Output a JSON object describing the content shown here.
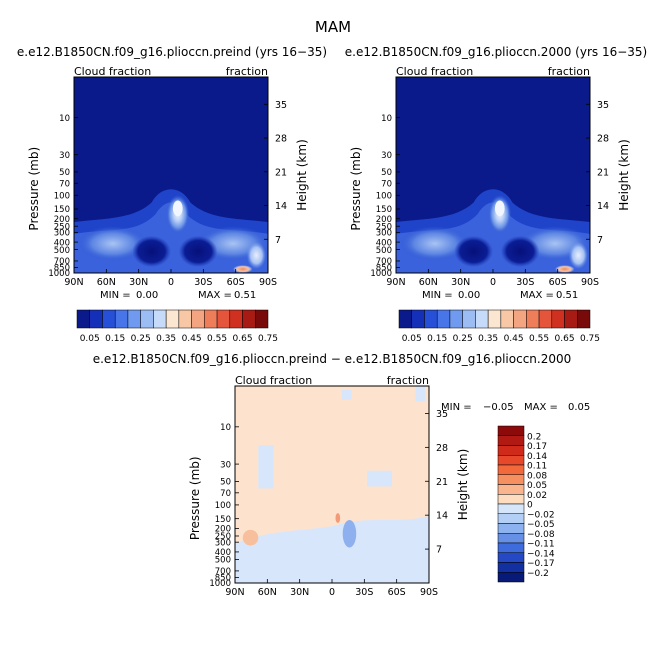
{
  "figure": {
    "season": "MAM"
  },
  "chart_data": [
    {
      "type": "heatmap",
      "panel": "left",
      "title": "e.e12.B1850CN.f09_g16.plioccn.preind (yrs 16−35)",
      "variable_label": "Cloud fraction",
      "units_label": "fraction",
      "xlabel": "",
      "ylabel": "Pressure (mb)",
      "y2label": "Height (km)",
      "x_ticks": [
        "90N",
        "60N",
        "30N",
        "0",
        "30S",
        "60S",
        "90S"
      ],
      "y_ticks": [
        "10",
        "30",
        "50",
        "70",
        "100",
        "150",
        "200",
        "250",
        "300",
        "400",
        "500",
        "700",
        "850",
        "1000"
      ],
      "y2_ticks": [
        "35",
        "28",
        "21",
        "14",
        "7"
      ],
      "min_text": "MIN =",
      "min_value": "0.00",
      "max_text": "MAX =",
      "max_value": "0.51",
      "colorbar": {
        "orientation": "horizontal",
        "levels": [
          "0.05",
          "0.15",
          "0.25",
          "0.35",
          "0.45",
          "0.55",
          "0.65",
          "0.75"
        ],
        "colors": [
          "#0a1a8a",
          "#1530b8",
          "#2650d8",
          "#4876e8",
          "#6f9aef",
          "#9cbdf4",
          "#c6dbfa",
          "#fbe6d2",
          "#f8c7a6",
          "#f3a480",
          "#ee7d5a",
          "#e4553c",
          "#cf3020",
          "#a81a14",
          "#780a0a"
        ]
      }
    },
    {
      "type": "heatmap",
      "panel": "right",
      "title": "e.e12.B1850CN.f09_g16.plioccn.2000 (yrs 16−35)",
      "variable_label": "Cloud fraction",
      "units_label": "fraction",
      "xlabel": "",
      "ylabel": "Pressure (mb)",
      "y2label": "Height (km)",
      "x_ticks": [
        "90N",
        "60N",
        "30N",
        "0",
        "30S",
        "60S",
        "90S"
      ],
      "y_ticks": [
        "10",
        "30",
        "50",
        "70",
        "100",
        "150",
        "200",
        "250",
        "300",
        "400",
        "500",
        "700",
        "850",
        "1000"
      ],
      "y2_ticks": [
        "35",
        "28",
        "21",
        "14",
        "7"
      ],
      "min_text": "MIN =",
      "min_value": "0.00",
      "max_text": "MAX =",
      "max_value": "0.51",
      "colorbar": {
        "orientation": "horizontal",
        "levels": [
          "0.05",
          "0.15",
          "0.25",
          "0.35",
          "0.45",
          "0.55",
          "0.65",
          "0.75"
        ],
        "colors": [
          "#0a1a8a",
          "#1530b8",
          "#2650d8",
          "#4876e8",
          "#6f9aef",
          "#9cbdf4",
          "#c6dbfa",
          "#fbe6d2",
          "#f8c7a6",
          "#f3a480",
          "#ee7d5a",
          "#e4553c",
          "#cf3020",
          "#a81a14",
          "#780a0a"
        ]
      }
    },
    {
      "type": "heatmap",
      "panel": "difference",
      "title": "e.e12.B1850CN.f09_g16.plioccn.preind − e.e12.B1850CN.f09_g16.plioccn.2000",
      "variable_label": "Cloud fraction",
      "units_label": "fraction",
      "xlabel": "",
      "ylabel": "Pressure (mb)",
      "y2label": "Height (km)",
      "x_ticks": [
        "90N",
        "60N",
        "30N",
        "0",
        "30S",
        "60S",
        "90S"
      ],
      "y_ticks": [
        "10",
        "30",
        "50",
        "70",
        "100",
        "150",
        "200",
        "250",
        "300",
        "400",
        "500",
        "700",
        "850",
        "1000"
      ],
      "y2_ticks": [
        "35",
        "28",
        "21",
        "14",
        "7"
      ],
      "min_text": "MIN =",
      "min_value": "−0.05",
      "max_text": "MAX =",
      "max_value": "0.05",
      "colorbar": {
        "orientation": "vertical",
        "levels": [
          "0.2",
          "0.17",
          "0.14",
          "0.11",
          "0.08",
          "0.05",
          "0.02",
          "0",
          "−0.02",
          "−0.05",
          "−0.08",
          "−0.11",
          "−0.14",
          "−0.17",
          "−0.2"
        ],
        "colors": [
          "#8c0a0a",
          "#b01a12",
          "#d02a1a",
          "#e8482a",
          "#f26a3c",
          "#f79060",
          "#fab58e",
          "#fddcc0",
          "#d6e6fa",
          "#b4cff5",
          "#8cb2ef",
          "#6590e6",
          "#3f6cdc",
          "#2548c4",
          "#1230a0",
          "#071a78"
        ]
      }
    }
  ]
}
